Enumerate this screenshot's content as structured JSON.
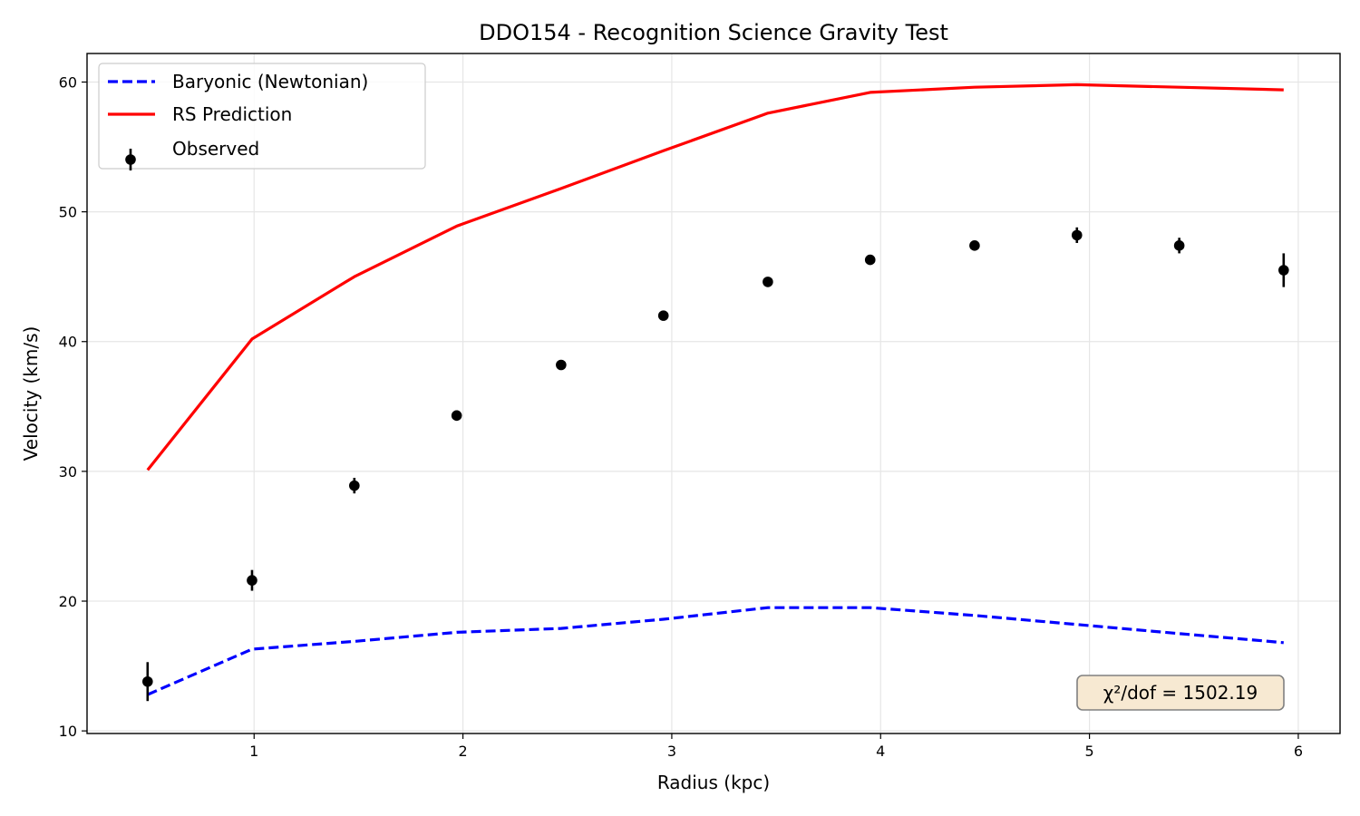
{
  "chart_data": {
    "type": "line",
    "title": "DDO154 - Recognition Science Gravity Test",
    "xlabel": "Radius (kpc)",
    "ylabel": "Velocity (km/s)",
    "xlim": [
      0.2,
      6.2
    ],
    "ylim": [
      9.8,
      62.2
    ],
    "xticks": [
      1,
      2,
      3,
      4,
      5,
      6
    ],
    "yticks": [
      10,
      20,
      30,
      40,
      50,
      60
    ],
    "grid": true,
    "legend_position": "top-left",
    "colors": {
      "baryonic": "#0000ff",
      "rs": "#ff0000",
      "observed": "#000000"
    },
    "series": [
      {
        "name": "Baryonic (Newtonian)",
        "style": "dashed",
        "x": [
          0.49,
          0.99,
          1.48,
          1.97,
          2.47,
          2.96,
          3.46,
          3.95,
          4.45,
          4.94,
          5.43,
          5.93
        ],
        "y": [
          12.8,
          16.3,
          16.9,
          17.6,
          17.9,
          18.6,
          19.5,
          19.5,
          18.9,
          18.2,
          17.5,
          16.8
        ]
      },
      {
        "name": "RS Prediction",
        "style": "solid",
        "x": [
          0.49,
          0.99,
          1.48,
          1.97,
          2.47,
          2.96,
          3.46,
          3.95,
          4.45,
          4.94,
          5.43,
          5.93
        ],
        "y": [
          30.1,
          40.2,
          45.0,
          48.9,
          51.8,
          54.7,
          57.6,
          59.2,
          59.6,
          59.8,
          59.6,
          59.4
        ]
      },
      {
        "name": "Observed",
        "style": "errorbar",
        "x": [
          0.49,
          0.99,
          1.48,
          1.97,
          2.47,
          2.96,
          3.46,
          3.95,
          4.45,
          4.94,
          5.43,
          5.93
        ],
        "y": [
          13.8,
          21.6,
          28.9,
          34.3,
          38.2,
          42.0,
          44.6,
          46.3,
          47.4,
          48.2,
          47.4,
          45.5
        ],
        "yerr": [
          1.5,
          0.8,
          0.6,
          0.4,
          0.3,
          0.2,
          0.2,
          0.2,
          0.2,
          0.6,
          0.6,
          1.3
        ]
      }
    ],
    "annotation": "χ²/dof = 1502.19"
  }
}
